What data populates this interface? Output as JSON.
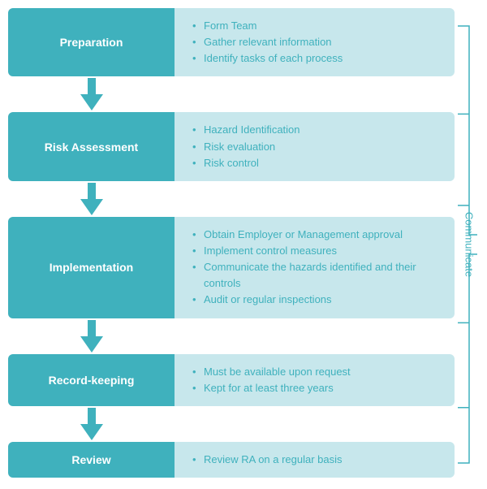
{
  "diagram": {
    "type": "flowchart",
    "background_color": "#ffffff",
    "step_label_bg": "#3fb1bd",
    "step_label_color": "#ffffff",
    "step_detail_bg": "#c7e7ec",
    "step_detail_color": "#3fb1bd",
    "arrow_color": "#3fb1bd",
    "bracket_color": "#3fb1bd",
    "communicate_label": "Communicate",
    "label_fontsize": 14,
    "detail_fontsize": 13,
    "row_radius": 6,
    "steps": [
      {
        "id": "preparation",
        "label": "Preparation",
        "items": [
          "Form Team",
          "Gather relevant information",
          "Identify tasks of each process"
        ]
      },
      {
        "id": "risk-assessment",
        "label": "Risk Assessment",
        "items": [
          "Hazard Identification",
          "Risk evaluation",
          "Risk control"
        ]
      },
      {
        "id": "implementation",
        "label": "Implementation",
        "items": [
          "Obtain Employer or Management approval",
          "Implement control measures",
          "Communicate the hazards identified and their controls",
          "Audit or regular inspections"
        ]
      },
      {
        "id": "record-keeping",
        "label": "Record-keeping",
        "items": [
          "Must be available upon request",
          "Kept for at least three years"
        ]
      },
      {
        "id": "review",
        "label": "Review",
        "items": [
          "Review RA on a regular basis"
        ]
      }
    ]
  }
}
